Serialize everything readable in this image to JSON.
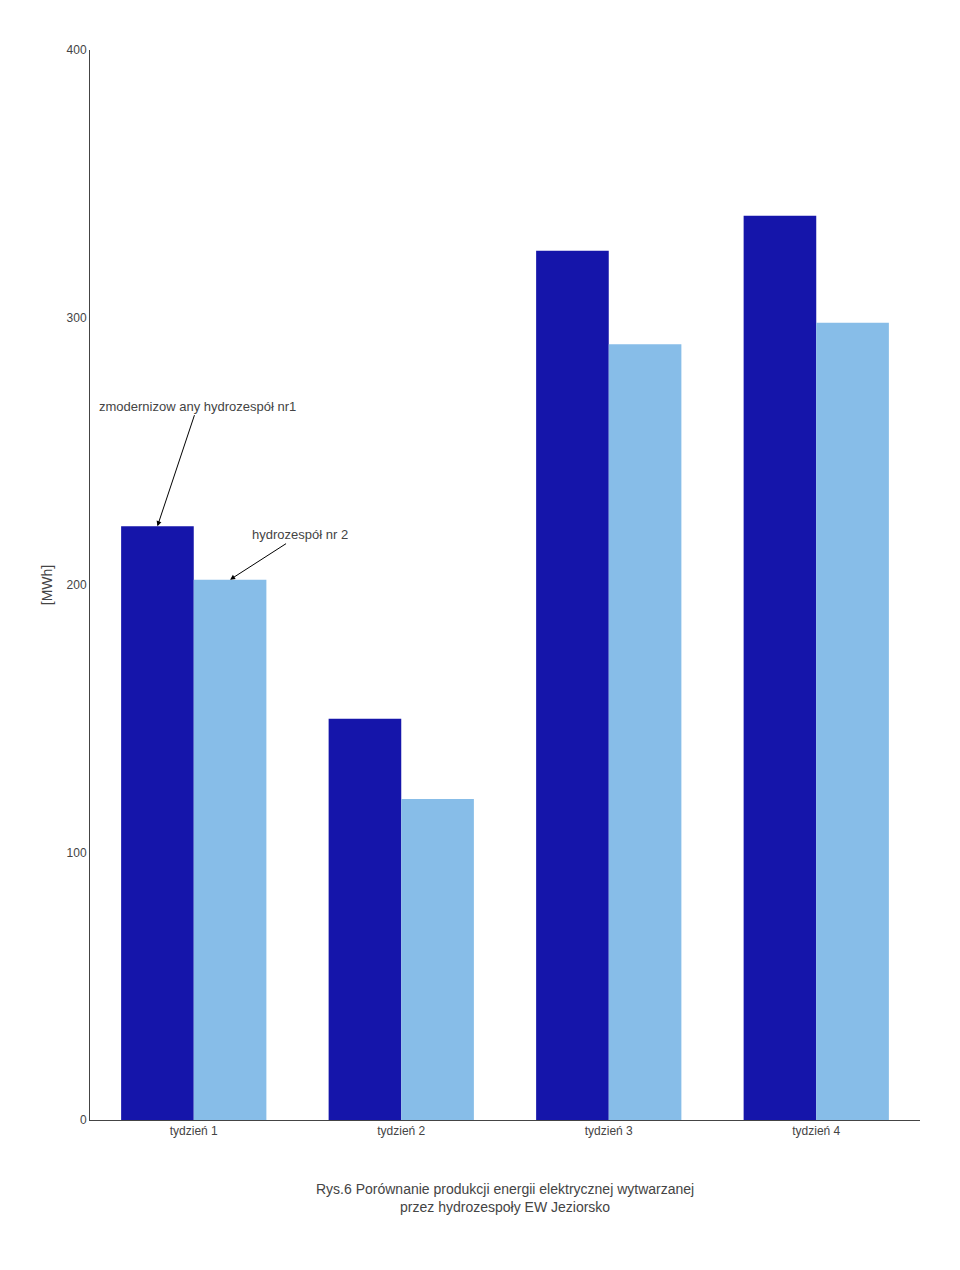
{
  "chart_data": {
    "type": "bar",
    "categories": [
      "tydzień 1",
      "tydzień 2",
      "tydzień 3",
      "tydzień 4"
    ],
    "series": [
      {
        "name": "zmodernizow any hydrozespół nr1",
        "color": "#1515aa",
        "values": [
          222,
          150,
          325,
          338
        ]
      },
      {
        "name": "hydrozespół nr 2",
        "color": "#87bde8",
        "values": [
          202,
          120,
          290,
          298
        ]
      }
    ],
    "ylabel": "[MWh]",
    "ylim": [
      0,
      400
    ],
    "yticks": [
      0,
      100,
      200,
      300,
      400
    ],
    "grid": false,
    "caption": [
      "Rys.6 Porównanie produkcji energii elektrycznej wytwarzanej",
      "przez hydrozespoły EW Jeziorsko"
    ]
  }
}
